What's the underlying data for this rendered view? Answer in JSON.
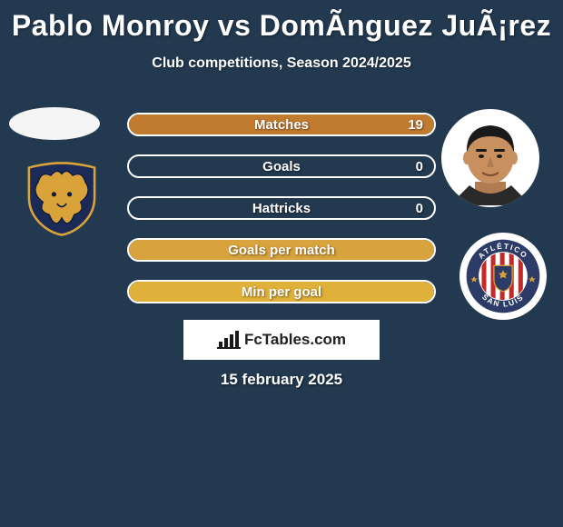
{
  "title": "Pablo Monroy vs DomÃ­nguez JuÃ¡rez",
  "subtitle": "Club competitions, Season 2024/2025",
  "stats": [
    {
      "label": "Matches",
      "value_right": "19",
      "fill_pct": 100,
      "fill_color": "#c17b30"
    },
    {
      "label": "Goals",
      "value_right": "0",
      "fill_pct": 0,
      "fill_color": "#d08a32"
    },
    {
      "label": "Hattricks",
      "value_right": "0",
      "fill_pct": 0,
      "fill_color": "#d08a32"
    },
    {
      "label": "Goals per match",
      "value_right": "",
      "fill_pct": 100,
      "fill_color": "#d8a23c"
    },
    {
      "label": "Min per goal",
      "value_right": "",
      "fill_pct": 100,
      "fill_color": "#dfb03a"
    }
  ],
  "brand_text": "FcTables.com",
  "date": "15 february 2025",
  "club_left": {
    "bg": "#1b2a57",
    "face_fill": "#d9a33a",
    "stroke": "#0d1a3f"
  },
  "club_right": {
    "ring": "#2d3c66",
    "text_top": "ATLÉTICO",
    "text_bottom": "SAN LUIS"
  },
  "colors": {
    "background": "#22394f",
    "text": "#ffffff"
  }
}
